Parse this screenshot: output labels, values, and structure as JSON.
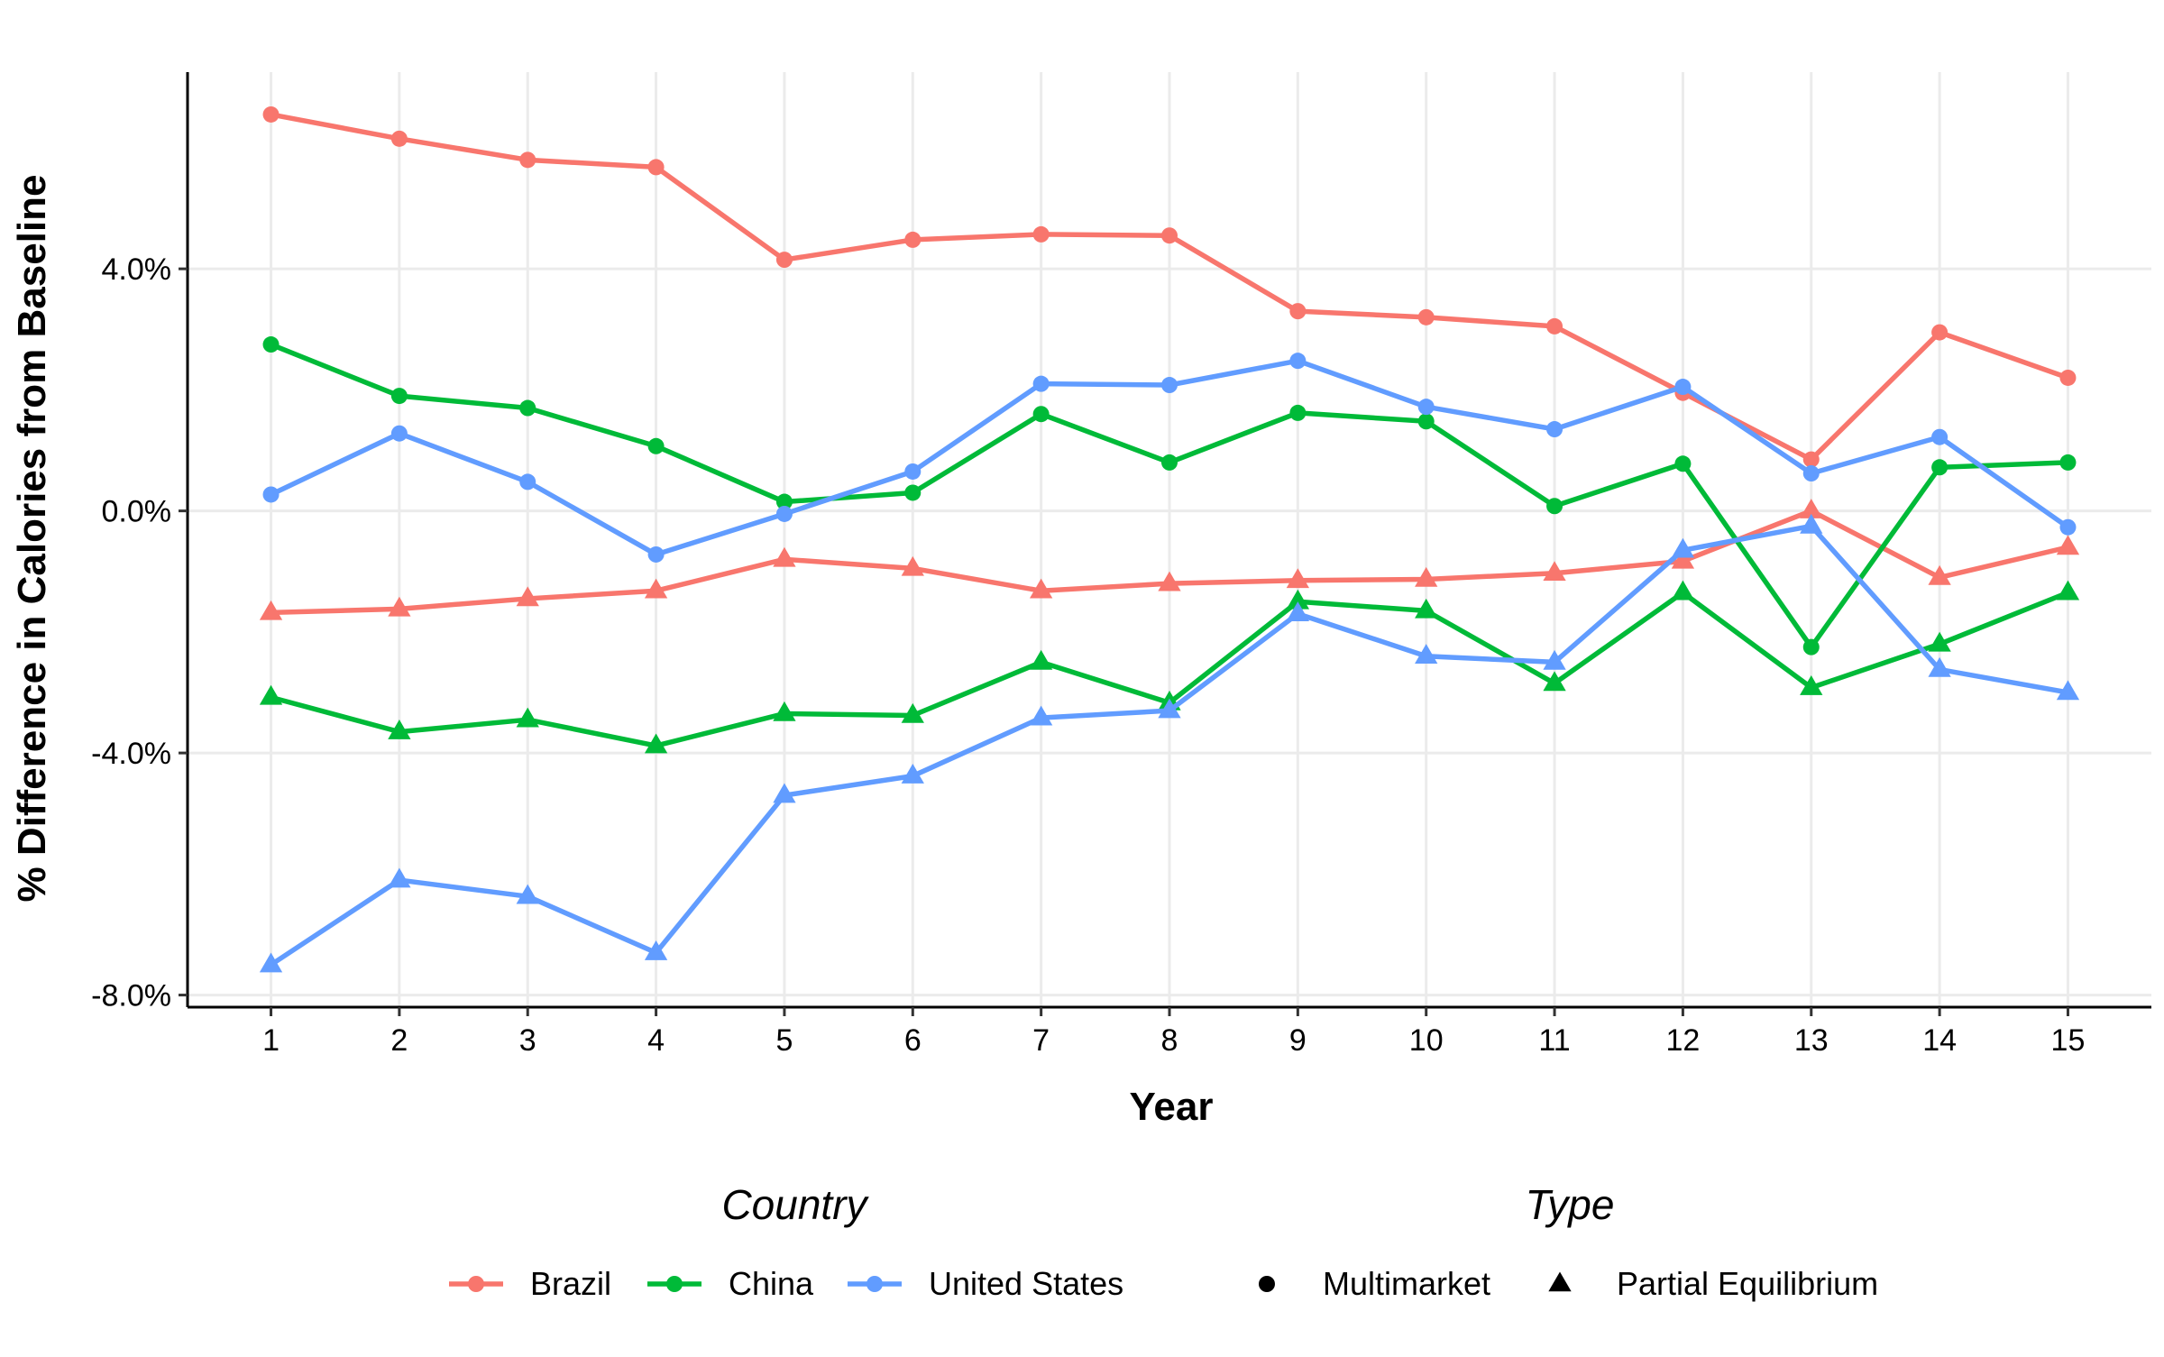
{
  "chart_data": {
    "type": "line",
    "title": "",
    "xlabel": "Year",
    "ylabel": "% Difference in Calories from Baseline",
    "x": [
      1,
      2,
      3,
      4,
      5,
      6,
      7,
      8,
      9,
      10,
      11,
      12,
      13,
      14,
      15
    ],
    "x_ticks": [
      "1",
      "2",
      "3",
      "4",
      "5",
      "6",
      "7",
      "8",
      "9",
      "10",
      "11",
      "12",
      "13",
      "14",
      "15"
    ],
    "y_ticks": [
      {
        "value": 4.0,
        "label": "4.0%"
      },
      {
        "value": 0.0,
        "label": "0.0%"
      },
      {
        "value": -4.0,
        "label": "-4.0%"
      },
      {
        "value": -8.0,
        "label": "-8.0%"
      }
    ],
    "xlim": [
      0.35,
      15.65
    ],
    "ylim": [
      -8.2,
      7.25
    ],
    "grid": true,
    "legend_position": "bottom",
    "legend": {
      "country_title": "Country",
      "type_title": "Type",
      "countries": [
        {
          "name": "Brazil",
          "color": "#F8766D"
        },
        {
          "name": "China",
          "color": "#00BA38"
        },
        {
          "name": "United States",
          "color": "#619CFF"
        }
      ],
      "types": [
        {
          "name": "Multimarket",
          "shape": "circle"
        },
        {
          "name": "Partial Equilibrium",
          "shape": "triangle"
        }
      ]
    },
    "series": [
      {
        "country": "Brazil",
        "type": "Multimarket",
        "color": "#F8766D",
        "shape": "circle",
        "values": [
          6.55,
          6.15,
          5.8,
          5.68,
          4.15,
          4.48,
          4.57,
          4.55,
          3.3,
          3.2,
          3.05,
          1.95,
          0.85,
          2.95,
          2.2
        ]
      },
      {
        "country": "Brazil",
        "type": "Partial Equilibrium",
        "color": "#F8766D",
        "shape": "triangle",
        "values": [
          -1.68,
          -1.62,
          -1.45,
          -1.32,
          -0.8,
          -0.95,
          -1.32,
          -1.2,
          -1.15,
          -1.13,
          -1.03,
          -0.83,
          0.0,
          -1.1,
          -0.6
        ]
      },
      {
        "country": "China",
        "type": "Multimarket",
        "color": "#00BA38",
        "shape": "circle",
        "values": [
          2.75,
          1.9,
          1.7,
          1.07,
          0.15,
          0.3,
          1.6,
          0.8,
          1.62,
          1.48,
          0.08,
          0.78,
          -2.25,
          0.72,
          0.8
        ]
      },
      {
        "country": "China",
        "type": "Partial Equilibrium",
        "color": "#00BA38",
        "shape": "triangle",
        "values": [
          -3.08,
          -3.65,
          -3.45,
          -3.88,
          -3.35,
          -3.38,
          -2.5,
          -3.17,
          -1.5,
          -1.65,
          -2.85,
          -1.35,
          -2.92,
          -2.2,
          -1.35
        ]
      },
      {
        "country": "United States",
        "type": "Multimarket",
        "color": "#619CFF",
        "shape": "circle",
        "values": [
          0.27,
          1.28,
          0.48,
          -0.72,
          -0.05,
          0.65,
          2.1,
          2.08,
          2.48,
          1.72,
          1.35,
          2.05,
          0.62,
          1.22,
          -0.27
        ]
      },
      {
        "country": "United States",
        "type": "Partial Equilibrium",
        "color": "#619CFF",
        "shape": "triangle",
        "values": [
          -7.5,
          -6.1,
          -6.37,
          -7.3,
          -4.7,
          -4.38,
          -3.42,
          -3.3,
          -1.7,
          -2.4,
          -2.5,
          -0.65,
          -0.25,
          -2.62,
          -3.0
        ]
      }
    ]
  }
}
